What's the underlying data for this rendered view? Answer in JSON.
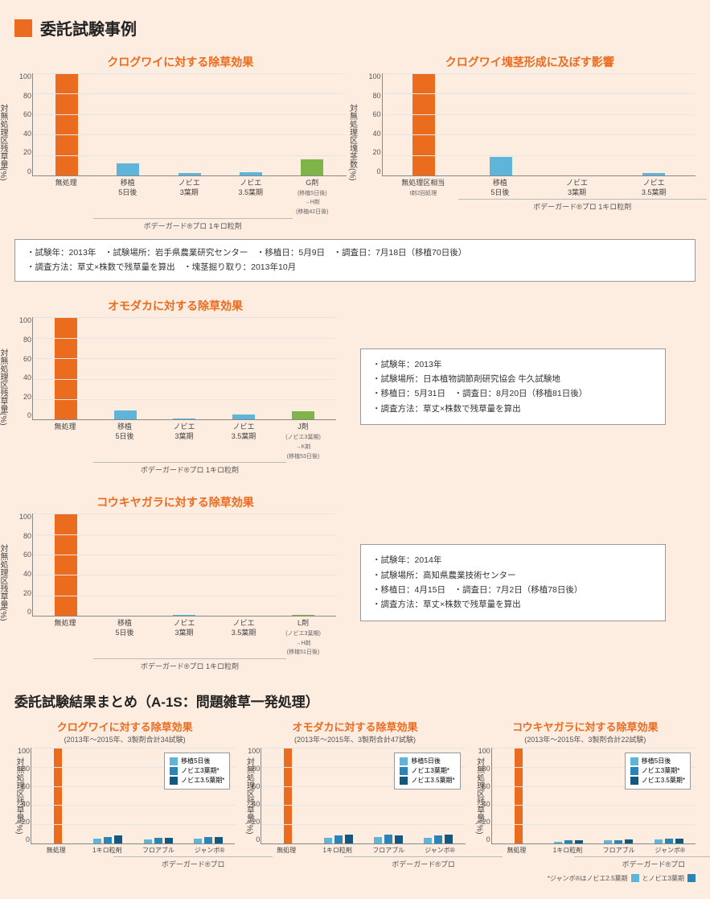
{
  "colors": {
    "orange": "#ec6c1f",
    "blue1": "#5fb5d9",
    "blue2": "#2a84b5",
    "blue3": "#14587f",
    "green": "#7fb548",
    "bg": "#fdece0"
  },
  "header": "委託試験事例",
  "ytick": [
    "100",
    "80",
    "60",
    "40",
    "20",
    "0"
  ],
  "c1": {
    "title": "クログワイに対する除草効果",
    "ylabel": "対無処理区残草量(%)",
    "bars": [
      {
        "v": 100,
        "c": "#ec6c1f",
        "l": "無処理"
      },
      {
        "v": 12,
        "c": "#5fb5d9",
        "l": "移植\n5日後"
      },
      {
        "v": 2,
        "c": "#5fb5d9",
        "l": "ノビエ\n3葉期"
      },
      {
        "v": 3,
        "c": "#5fb5d9",
        "l": "ノビエ\n3.5葉期"
      },
      {
        "v": 16,
        "c": "#7fb548",
        "l": "G剤",
        "s": "(移植5日後)\n→H剤\n(移植42日後)"
      }
    ],
    "grp": "ボデーガード®プロ 1キロ粒剤",
    "gs": 1,
    "ge": 3
  },
  "c2": {
    "title": "クログワイ塊茎形成に及ぼす影響",
    "ylabel": "対無処理区塊茎数(%)",
    "bars": [
      {
        "v": 100,
        "c": "#ec6c1f",
        "l": "無処理区相当",
        "s": "I剤2回処理"
      },
      {
        "v": 18,
        "c": "#5fb5d9",
        "l": "移植\n5日後"
      },
      {
        "v": 0,
        "c": "#5fb5d9",
        "l": "ノビエ\n3葉期"
      },
      {
        "v": 2,
        "c": "#5fb5d9",
        "l": "ノビエ\n3.5葉期"
      }
    ],
    "grp": "ボデーガード®プロ 1キロ粒剤",
    "gs": 1,
    "ge": 3
  },
  "info1": "・試験年：2013年　・試験場所：岩手県農業研究センター　・移植日：5月9日　・調査日：7月18日（移植70日後）\n・調査方法：草丈×株数で残草量を算出　・塊茎掘り取り：2013年10月",
  "c3": {
    "title": "オモダカに対する除草効果",
    "ylabel": "対無処理区残草量(%)",
    "bars": [
      {
        "v": 100,
        "c": "#ec6c1f",
        "l": "無処理"
      },
      {
        "v": 9,
        "c": "#5fb5d9",
        "l": "移植\n5日後"
      },
      {
        "v": 1,
        "c": "#5fb5d9",
        "l": "ノビエ\n3葉期"
      },
      {
        "v": 5,
        "c": "#5fb5d9",
        "l": "ノビエ\n3.5葉期"
      },
      {
        "v": 8,
        "c": "#7fb548",
        "l": "J剤",
        "s": "(ノビエ3葉期)\n→K剤\n(移植53日後)"
      }
    ],
    "grp": "ボデーガード®プロ 1キロ粒剤",
    "gs": 1,
    "ge": 3
  },
  "info2": "・試験年：2013年\n・試験場所：日本植物調節剤研究協会 牛久試験地\n・移植日：5月31日　・調査日：8月20日（移植81日後）\n・調査方法：草丈×株数で残草量を算出",
  "c4": {
    "title": "コウキヤガラに対する除草効果",
    "ylabel": "対無処理区残草量(%)",
    "bars": [
      {
        "v": 100,
        "c": "#ec6c1f",
        "l": "無処理"
      },
      {
        "v": 0,
        "c": "#5fb5d9",
        "l": "移植\n5日後"
      },
      {
        "v": 1,
        "c": "#5fb5d9",
        "l": "ノビエ\n3葉期"
      },
      {
        "v": 0,
        "c": "#5fb5d9",
        "l": "ノビエ\n3.5葉期"
      },
      {
        "v": 1,
        "c": "#7fb548",
        "l": "L剤",
        "s": "(ノビエ3葉期)\n→H剤\n(移植51日後)"
      }
    ],
    "grp": "ボデーガード®プロ 1キロ粒剤",
    "gs": 1,
    "ge": 3
  },
  "info3": "・試験年：2014年\n・試験場所：高知県農業技術センター\n・移植日：4月15日　・調査日：7月2日（移植78日後）\n・調査方法：草丈×株数で残草量を算出",
  "h2": "委託試験結果まとめ（A-1S：問題雑草一発処理）",
  "leg": [
    "移植5日後",
    "ノビエ3葉期*",
    "ノビエ3.5葉期*"
  ],
  "legc": [
    "#5fb5d9",
    "#2a84b5",
    "#14587f"
  ],
  "s1": {
    "title": "クログワイに対する除草効果",
    "sub": "(2013年～2015年、3製剤合計34試験)",
    "ylabel": "対無処理区残草量(%)",
    "cats": [
      "無処理",
      "1キロ粒剤",
      "フロアブル",
      "ジャンボ®"
    ],
    "vals": [
      [
        100
      ],
      [
        5,
        7,
        8
      ],
      [
        4,
        6,
        6
      ],
      [
        5,
        7,
        7
      ]
    ],
    "grp": "ボデーガード®プロ"
  },
  "s2": {
    "title": "オモダカに対する除草効果",
    "sub": "(2013年～2015年、3製剤合計47試験)",
    "ylabel": "対無処理区残草量(%)",
    "cats": [
      "無処理",
      "1キロ粒剤",
      "フロアブル",
      "ジャンボ®"
    ],
    "vals": [
      [
        100
      ],
      [
        6,
        8,
        9
      ],
      [
        7,
        9,
        8
      ],
      [
        6,
        8,
        9
      ]
    ],
    "grp": "ボデーガード®プロ"
  },
  "s3": {
    "title": "コウキヤガラに対する除草効果",
    "sub": "(2013年～2015年、3製剤合計22試験)",
    "ylabel": "対無処理区残草量(%)",
    "cats": [
      "無処理",
      "1キロ粒剤",
      "フロアブル",
      "ジャンボ®"
    ],
    "vals": [
      [
        100
      ],
      [
        2,
        3,
        3
      ],
      [
        3,
        3,
        4
      ],
      [
        4,
        5,
        5
      ]
    ],
    "grp": "ボデーガード®プロ"
  },
  "foot": "*ジャンボ®はノビエ2.5葉期",
  "foot2": "とノビエ3葉期"
}
